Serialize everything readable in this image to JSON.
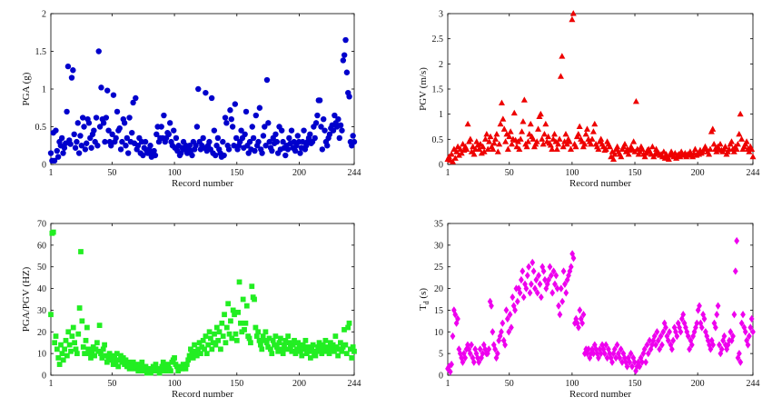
{
  "figure": {
    "panels": [
      {
        "id": "pga",
        "marker": "circle",
        "color": "#0000cc"
      },
      {
        "id": "pgv",
        "marker": "triangle",
        "color": "#ee0000"
      },
      {
        "id": "ratio",
        "marker": "square",
        "color": "#22ee22"
      },
      {
        "id": "td",
        "marker": "diamond",
        "color": "#ee00ee"
      }
    ]
  },
  "chart_data": [
    {
      "type": "scatter",
      "xlabel": "Record number",
      "ylabel": "PGA (g)",
      "xlim": [
        1,
        244
      ],
      "ylim": [
        0,
        2
      ],
      "xticks": [
        1,
        50,
        100,
        150,
        200,
        244
      ],
      "yticks": [
        0,
        0.5,
        1,
        1.5,
        2
      ],
      "ytick_labels": [
        "0",
        "0.5",
        "1",
        "1.5",
        "2"
      ],
      "grid": false,
      "series": [
        {
          "values": [
            0.15,
            0.05,
            0.42,
            0.05,
            0.45,
            0.18,
            0.1,
            0.3,
            0.25,
            0.35,
            0.15,
            0.22,
            0.28,
            0.7,
            1.3,
            0.32,
            0.27,
            1.15,
            1.25,
            0.4,
            0.22,
            0.3,
            0.55,
            0.15,
            0.38,
            0.25,
            0.62,
            0.5,
            0.2,
            0.28,
            0.6,
            0.55,
            0.35,
            0.22,
            0.4,
            0.45,
            0.3,
            0.62,
            0.25,
            1.5,
            0.5,
            1.02,
            0.6,
            0.55,
            0.3,
            0.62,
            0.98,
            0.45,
            0.3,
            0.25,
            0.4,
            0.92,
            0.3,
            0.35,
            0.7,
            0.45,
            0.48,
            0.2,
            0.3,
            0.6,
            0.55,
            0.25,
            0.35,
            0.15,
            0.62,
            0.3,
            0.42,
            0.82,
            0.28,
            0.88,
            0.2,
            0.25,
            0.35,
            0.15,
            0.3,
            0.12,
            0.22,
            0.3,
            0.18,
            0.15,
            0.2,
            0.25,
            0.1,
            0.15,
            0.18,
            0.12,
            0.4,
            0.5,
            0.3,
            0.35,
            0.5,
            0.35,
            0.65,
            0.3,
            0.35,
            0.42,
            0.4,
            0.55,
            0.3,
            0.25,
            0.45,
            0.22,
            0.35,
            0.18,
            0.25,
            0.12,
            0.15,
            0.22,
            0.3,
            0.2,
            0.25,
            0.15,
            0.2,
            0.25,
            0.18,
            0.12,
            0.3,
            0.2,
            0.25,
            0.5,
            1.0,
            0.3,
            0.2,
            0.25,
            0.35,
            0.22,
            0.95,
            0.18,
            0.25,
            0.3,
            0.2,
            0.88,
            0.15,
            0.45,
            0.12,
            0.25,
            0.35,
            0.2,
            0.15,
            0.1,
            0.3,
            0.12,
            0.62,
            0.55,
            0.25,
            0.2,
            0.72,
            0.6,
            0.5,
            0.25,
            0.8,
            0.35,
            0.2,
            0.25,
            0.3,
            0.45,
            0.35,
            0.22,
            0.4,
            0.7,
            0.25,
            0.15,
            0.3,
            0.2,
            0.5,
            0.35,
            0.18,
            0.65,
            0.25,
            0.3,
            0.75,
            0.2,
            0.15,
            0.38,
            0.5,
            0.25,
            1.12,
            0.55,
            0.3,
            0.22,
            0.18,
            0.35,
            0.28,
            0.4,
            0.3,
            0.15,
            0.5,
            0.2,
            0.45,
            0.3,
            0.22,
            0.12,
            0.25,
            0.2,
            0.35,
            0.28,
            0.45,
            0.22,
            0.3,
            0.18,
            0.25,
            0.38,
            0.3,
            0.15,
            0.22,
            0.3,
            0.45,
            0.2,
            0.25,
            0.3,
            0.35,
            0.4,
            0.28,
            0.3,
            0.5,
            0.35,
            0.55,
            0.65,
            0.85,
            0.85,
            0.5,
            0.2,
            0.6,
            0.45,
            0.3,
            0.25,
            0.35,
            0.4,
            0.48,
            0.52,
            0.45,
            0.65,
            0.55,
            0.5,
            0.6,
            0.35,
            0.52,
            0.45,
            1.38,
            1.45,
            1.65,
            1.22,
            0.95,
            0.9,
            0.3,
            0.25,
            0.38,
            0.3
          ]
        }
      ]
    },
    {
      "type": "scatter",
      "xlabel": "Record number",
      "ylabel": "PGV (m/s)",
      "xlim": [
        1,
        244
      ],
      "ylim": [
        0,
        3
      ],
      "xticks": [
        1,
        50,
        100,
        150,
        200,
        244
      ],
      "yticks": [
        0,
        0.5,
        1,
        1.5,
        2,
        2.5,
        3
      ],
      "ytick_labels": [
        "0",
        "0.5",
        "1",
        "1.5",
        "2",
        "2.5",
        "3"
      ],
      "grid": false,
      "series": [
        {
          "values": [
            0.1,
            0.15,
            0.08,
            0.2,
            0.05,
            0.3,
            0.12,
            0.25,
            0.35,
            0.18,
            0.3,
            0.22,
            0.4,
            0.28,
            0.35,
            0.3,
            0.8,
            0.45,
            0.5,
            0.25,
            0.35,
            0.2,
            0.3,
            0.45,
            0.38,
            0.3,
            0.4,
            0.22,
            0.35,
            0.25,
            0.5,
            0.6,
            0.3,
            0.45,
            0.55,
            0.35,
            0.3,
            0.42,
            0.5,
            0.6,
            0.25,
            0.4,
            0.8,
            1.22,
            0.9,
            0.7,
            0.45,
            0.6,
            0.3,
            0.55,
            0.65,
            0.4,
            0.5,
            1.02,
            0.48,
            0.35,
            0.45,
            0.3,
            0.5,
            0.65,
            0.85,
            1.28,
            0.4,
            0.35,
            0.45,
            0.6,
            0.8,
            0.55,
            0.5,
            0.35,
            0.4,
            0.45,
            0.7,
            0.95,
            1.0,
            0.5,
            0.4,
            0.6,
            0.8,
            0.45,
            0.55,
            0.42,
            0.38,
            0.3,
            0.5,
            0.6,
            0.45,
            0.3,
            0.4,
            0.5,
            1.75,
            2.15,
            0.35,
            0.45,
            0.6,
            0.4,
            0.5,
            0.45,
            0.3,
            2.88,
            3.0,
            0.4,
            0.35,
            0.55,
            0.6,
            0.75,
            0.5,
            0.45,
            0.35,
            0.4,
            0.6,
            0.7,
            0.5,
            0.45,
            0.4,
            0.5,
            0.65,
            0.8,
            0.4,
            0.35,
            0.3,
            0.45,
            0.5,
            0.4,
            0.35,
            0.28,
            0.3,
            0.45,
            0.4,
            0.35,
            0.15,
            0.25,
            0.1,
            0.2,
            0.3,
            0.35,
            0.25,
            0.2,
            0.15,
            0.3,
            0.35,
            0.4,
            0.25,
            0.3,
            0.2,
            0.28,
            0.35,
            0.3,
            0.45,
            0.25,
            1.25,
            0.3,
            0.2,
            0.25,
            0.35,
            0.3,
            0.2,
            0.15,
            0.22,
            0.28,
            0.3,
            0.25,
            0.2,
            0.35,
            0.15,
            0.2,
            0.3,
            0.25,
            0.22,
            0.18,
            0.2,
            0.15,
            0.25,
            0.12,
            0.2,
            0.15,
            0.1,
            0.18,
            0.25,
            0.2,
            0.15,
            0.22,
            0.12,
            0.18,
            0.2,
            0.15,
            0.25,
            0.2,
            0.18,
            0.22,
            0.15,
            0.2,
            0.18,
            0.25,
            0.2,
            0.15,
            0.22,
            0.3,
            0.18,
            0.22,
            0.2,
            0.28,
            0.22,
            0.25,
            0.3,
            0.35,
            0.3,
            0.25,
            0.2,
            0.3,
            0.65,
            0.7,
            0.4,
            0.3,
            0.25,
            0.35,
            0.3,
            0.4,
            0.28,
            0.25,
            0.3,
            0.35,
            0.2,
            0.25,
            0.3,
            0.4,
            0.45,
            0.3,
            0.25,
            0.35,
            0.3,
            0.4,
            0.6,
            1.0,
            0.5,
            0.3,
            0.35,
            0.4,
            0.45,
            0.3,
            0.25,
            0.35,
            0.3,
            0.15
          ]
        }
      ]
    },
    {
      "type": "scatter",
      "xlabel": "Record number",
      "ylabel": "PGA/PGV (HZ)",
      "xlim": [
        1,
        244
      ],
      "ylim": [
        0,
        70
      ],
      "xticks": [
        1,
        50,
        100,
        150,
        200,
        244
      ],
      "yticks": [
        0,
        10,
        20,
        30,
        40,
        50,
        60,
        70
      ],
      "ytick_labels": [
        "0",
        "10",
        "20",
        "30",
        "40",
        "50",
        "60",
        "70"
      ],
      "grid": false,
      "series": [
        {
          "values": [
            28,
            65.5,
            66,
            15,
            18,
            12,
            8,
            5,
            14,
            10,
            7,
            12,
            16,
            9,
            20,
            14,
            11,
            18,
            22,
            15,
            12,
            10,
            19,
            31,
            57,
            25,
            13,
            10,
            16,
            22,
            12,
            10,
            8,
            11,
            13,
            9,
            12,
            15,
            11,
            23,
            10,
            8,
            12,
            14,
            9,
            6,
            8,
            10,
            7,
            9,
            5,
            8,
            6,
            10,
            4,
            7,
            9,
            6,
            8,
            5,
            7,
            4,
            6,
            3,
            5,
            4,
            6,
            3,
            5,
            4,
            2,
            3,
            5,
            6,
            2,
            3,
            4,
            1,
            2,
            3,
            1,
            2,
            4,
            3,
            5,
            2,
            3,
            1,
            2,
            4,
            6,
            3,
            2,
            4,
            5,
            3,
            2,
            6,
            7,
            8,
            5,
            4,
            2,
            3,
            4,
            3,
            5,
            4,
            3,
            5,
            7,
            9,
            12,
            10,
            8,
            14,
            11,
            9,
            12,
            15,
            10,
            13,
            16,
            12,
            18,
            10,
            14,
            20,
            17,
            12,
            15,
            19,
            14,
            22,
            16,
            20,
            12,
            24,
            18,
            28,
            15,
            22,
            33,
            19,
            25,
            17,
            30,
            28,
            19,
            16,
            29,
            43,
            24,
            20,
            35,
            21,
            24,
            32,
            18,
            17,
            15,
            41,
            36,
            35,
            22,
            18,
            20,
            16,
            14,
            12,
            18,
            16,
            20,
            15,
            13,
            17,
            12,
            10,
            16,
            14,
            18,
            13,
            11,
            15,
            17,
            12,
            10,
            14,
            16,
            12,
            18,
            15,
            13,
            11,
            14,
            16,
            10,
            12,
            15,
            13,
            11,
            9,
            14,
            12,
            16,
            10,
            13,
            11,
            8,
            12,
            14,
            10,
            9,
            11,
            13,
            15,
            12,
            10,
            14,
            12,
            16,
            11,
            13,
            10,
            15,
            12,
            14,
            11,
            18,
            13,
            9,
            12,
            15,
            11,
            13,
            21,
            14,
            10,
            22,
            24,
            12,
            8,
            13,
            11
          ]
        }
      ]
    },
    {
      "type": "scatter",
      "xlabel": "Record number",
      "ylabel": "T_d (s)",
      "ylabel_main": "T",
      "ylabel_sub": "d",
      "ylabel_unit": " (s)",
      "xlim": [
        1,
        244
      ],
      "ylim": [
        0,
        35
      ],
      "xticks": [
        1,
        50,
        100,
        150,
        200,
        244
      ],
      "yticks": [
        0,
        5,
        10,
        15,
        20,
        25,
        30,
        35
      ],
      "ytick_labels": [
        "0",
        "5",
        "10",
        "15",
        "20",
        "25",
        "30",
        "35"
      ],
      "grid": false,
      "series": [
        {
          "values": [
            1.5,
            2,
            0.8,
            2.5,
            9,
            15,
            14,
            12,
            13,
            6,
            5,
            4,
            3,
            5,
            4,
            6,
            7,
            6,
            5,
            7,
            4,
            3,
            6,
            5,
            4,
            3,
            6,
            4,
            5,
            7,
            6,
            5,
            5,
            6,
            17,
            16,
            10,
            7,
            6,
            4,
            5,
            8,
            9,
            10,
            12,
            8,
            7,
            15,
            13,
            10,
            14,
            11,
            18,
            16,
            15,
            20,
            17,
            20,
            19,
            22,
            24,
            18,
            21,
            20,
            23,
            25,
            19,
            21,
            26,
            24,
            20,
            22,
            19,
            23,
            21,
            18,
            25,
            24,
            22,
            20,
            21,
            22,
            25,
            23,
            19,
            24,
            21,
            23,
            20,
            16,
            14,
            20,
            17,
            24,
            21,
            19,
            22,
            23,
            24,
            25,
            28,
            27,
            12,
            13,
            12,
            11,
            15,
            13,
            12,
            14,
            5,
            6,
            5,
            6,
            4,
            5,
            6,
            5,
            7,
            6,
            5,
            4,
            6,
            5,
            7,
            6,
            5,
            7,
            4,
            6,
            5,
            4,
            3,
            5,
            6,
            4,
            7,
            5,
            4,
            6,
            3,
            5,
            4,
            3,
            2,
            4,
            3,
            5,
            2,
            4,
            3,
            1,
            2,
            3,
            2,
            4,
            3,
            5,
            6,
            3,
            7,
            5,
            8,
            6,
            7,
            8,
            9,
            7,
            10,
            8,
            6,
            9,
            7,
            10,
            12,
            11,
            9,
            8,
            10,
            7,
            6,
            8,
            11,
            10,
            9,
            12,
            11,
            10,
            13,
            14,
            12,
            11,
            10,
            9,
            6,
            8,
            7,
            9,
            10,
            11,
            12,
            15,
            16,
            12,
            11,
            14,
            13,
            10,
            9,
            8,
            7,
            6,
            8,
            7,
            12,
            11,
            14,
            16,
            7,
            5,
            6,
            8,
            9,
            7,
            6,
            7,
            8,
            10,
            8,
            9,
            14,
            24,
            31,
            4,
            5,
            3,
            12,
            14,
            11,
            10,
            8,
            7,
            9,
            11,
            13,
            10
          ]
        }
      ]
    }
  ]
}
